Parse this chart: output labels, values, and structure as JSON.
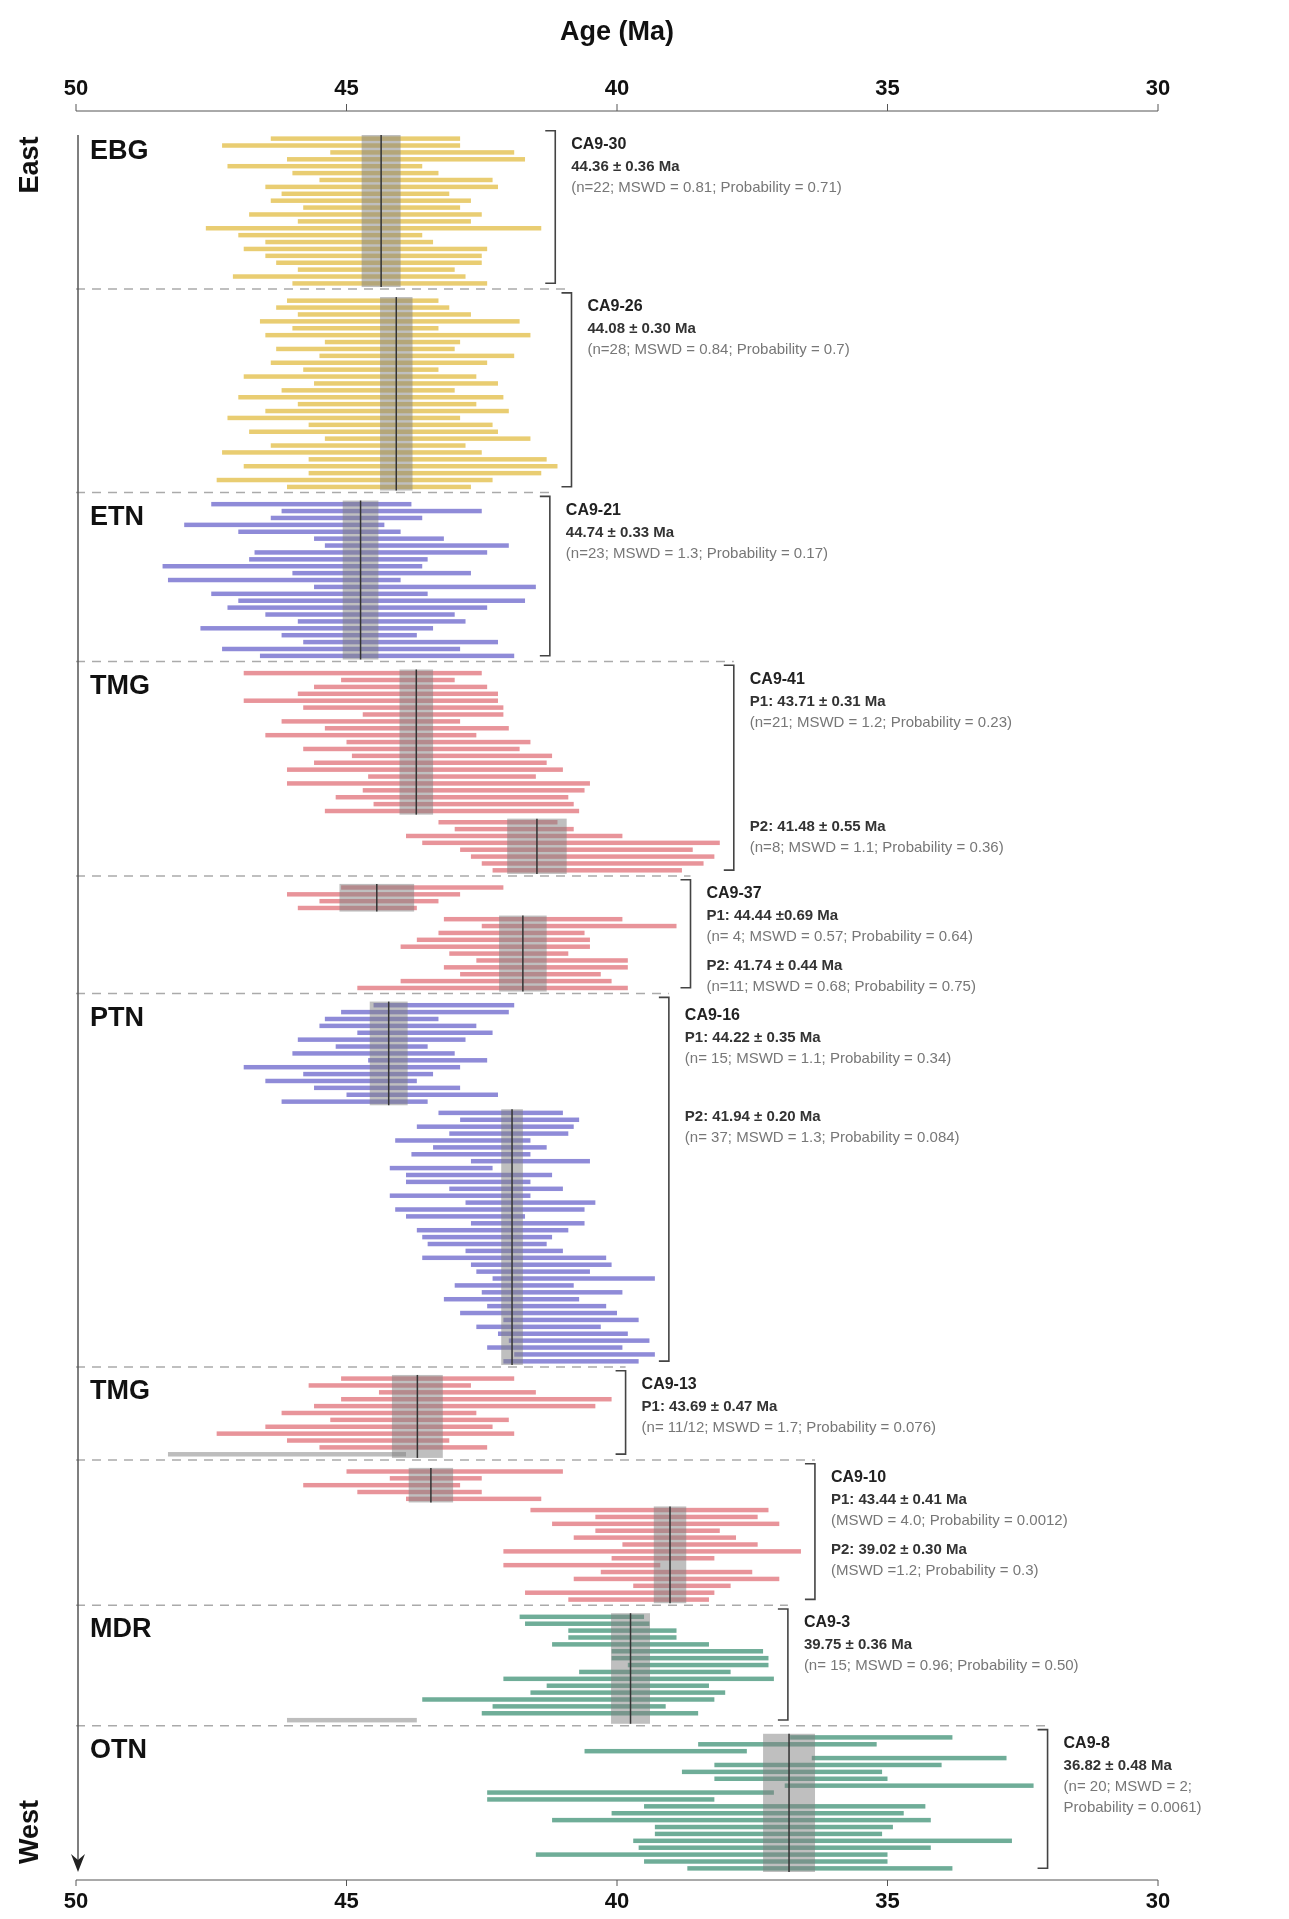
{
  "chart_data": [
    {
      "type": "bar",
      "orientation": "horizontal",
      "title": "CA9-30",
      "subtitle": "EBG",
      "ylabel": "East",
      "x2label": "Age (Ma)",
      "x2lim": [
        50,
        30
      ],
      "x2ticks": [
        50,
        45,
        40,
        35,
        30
      ],
      "xlim": [
        50,
        30
      ],
      "tick_labels": false,
      "categories": [
        null,
        null,
        null,
        null,
        null,
        null,
        null,
        null,
        null,
        null,
        null,
        null,
        null,
        null,
        null,
        null,
        null,
        null,
        null,
        null,
        null,
        null
      ],
      "base": [
        42.9,
        42.9,
        41.9,
        41.7,
        43.6,
        43.3,
        42.3,
        42.2,
        43.1,
        42.7,
        42.9,
        42.5,
        42.7,
        41.4,
        43.6,
        43.4,
        42.4,
        42.5,
        42.5,
        43.0,
        42.8,
        42.4
      ],
      "color": "#e9cd72",
      "values": [
        3.5,
        4.4,
        3.4,
        4.4,
        3.6,
        2.7,
        3.2,
        4.3,
        3.1,
        3.7,
        2.9,
        4.3,
        3.2,
        6.2,
        3.4,
        3.1,
        4.5,
        4.0,
        3.8,
        2.9,
        4.3,
        3.6
      ],
      "bands": [
        {
          "axis": "x",
          "from": 44.0,
          "to": 44.72,
          "color": "#7f7f7f"
        }
      ],
      "ref_lines": [
        {
          "axis": "x",
          "value": 44.36,
          "color": "#333333"
        }
      ],
      "annotations": [
        "44.36 ± 0.36 Ma",
        "(n=22; MSWD = 0.81; Probability = 0.71)"
      ]
    },
    {
      "type": "bar",
      "orientation": "horizontal",
      "title": "CA9-26",
      "xlim": [
        50,
        30
      ],
      "tick_labels": false,
      "categories": [
        null,
        null,
        null,
        null,
        null,
        null,
        null,
        null,
        null,
        null,
        null,
        null,
        null,
        null,
        null,
        null,
        null,
        null,
        null,
        null,
        null,
        null,
        null,
        null,
        null,
        null,
        null,
        null
      ],
      "base": [
        43.3,
        43.1,
        42.7,
        41.8,
        43.3,
        41.6,
        42.9,
        43.0,
        41.9,
        42.4,
        43.3,
        42.6,
        42.2,
        43.0,
        42.1,
        42.6,
        42.0,
        42.9,
        42.3,
        42.2,
        41.6,
        42.8,
        42.5,
        41.3,
        41.1,
        41.4,
        42.3,
        42.7
      ],
      "color": "#e9cd72",
      "values": [
        2.8,
        3.2,
        3.2,
        4.8,
        2.7,
        4.9,
        2.5,
        3.3,
        3.6,
        4.0,
        2.5,
        4.3,
        3.4,
        3.2,
        4.9,
        3.3,
        4.5,
        4.3,
        3.4,
        4.6,
        3.8,
        3.6,
        4.8,
        4.4,
        5.8,
        4.3,
        5.1,
        3.4
      ],
      "bands": [
        {
          "axis": "x",
          "from": 43.78,
          "to": 44.38,
          "color": "#7f7f7f"
        }
      ],
      "ref_lines": [
        {
          "axis": "x",
          "value": 44.08,
          "color": "#333333"
        }
      ],
      "annotations": [
        "44.08 ± 0.30 Ma",
        "(n=28; MSWD = 0.84; Probability = 0.7)"
      ]
    },
    {
      "type": "bar",
      "orientation": "horizontal",
      "title": "CA9-21",
      "subtitle": "ETN",
      "xlim": [
        50,
        30
      ],
      "tick_labels": false,
      "categories": [
        null,
        null,
        null,
        null,
        null,
        null,
        null,
        null,
        null,
        null,
        null,
        null,
        null,
        null,
        null,
        null,
        null,
        null,
        null,
        null,
        null,
        null,
        null
      ],
      "base": [
        43.8,
        42.5,
        43.6,
        44.3,
        44.0,
        43.2,
        42.0,
        42.4,
        43.5,
        43.6,
        42.7,
        44.0,
        41.5,
        43.5,
        41.7,
        42.4,
        43.0,
        42.8,
        43.4,
        43.7,
        42.2,
        42.9,
        41.9
      ],
      "color": "#8f8bd8",
      "values": [
        3.7,
        3.7,
        2.8,
        3.7,
        3.0,
        2.4,
        3.4,
        4.3,
        3.3,
        4.8,
        3.3,
        4.3,
        4.1,
        4.0,
        5.3,
        4.8,
        3.5,
        3.1,
        4.3,
        2.5,
        3.6,
        4.4,
        4.7
      ],
      "bands": [
        {
          "axis": "x",
          "from": 44.41,
          "to": 45.07,
          "color": "#7f7f7f"
        }
      ],
      "ref_lines": [
        {
          "axis": "x",
          "value": 44.74,
          "color": "#333333"
        }
      ],
      "annotations": [
        "44.74 ± 0.33 Ma",
        "(n=23; MSWD = 1.3; Probability = 0.17)"
      ]
    },
    {
      "type": "bar",
      "orientation": "horizontal",
      "title": "CA9-41",
      "subtitle": "TMG",
      "xlim": [
        50,
        30
      ],
      "tick_labels": false,
      "categories": [
        null,
        null,
        null,
        null,
        null,
        null,
        null,
        null,
        null,
        null,
        null,
        null,
        null,
        null,
        null,
        null,
        null,
        null,
        null,
        null,
        null
      ],
      "base": [
        42.5,
        43.0,
        42.4,
        42.2,
        42.2,
        42.1,
        42.1,
        42.9,
        42.0,
        42.6,
        41.6,
        41.8,
        41.2,
        41.3,
        41.0,
        41.5,
        40.5,
        40.6,
        40.9,
        40.8,
        40.7
      ],
      "color": "#e8949a",
      "values": [
        4.4,
        2.1,
        3.2,
        3.7,
        4.7,
        3.7,
        2.6,
        3.3,
        3.4,
        3.9,
        3.4,
        4.0,
        3.7,
        4.3,
        5.1,
        3.1,
        5.6,
        4.1,
        4.3,
        3.7,
        4.7
      ],
      "bands": [
        {
          "axis": "x",
          "from": 43.4,
          "to": 44.02,
          "color": "#7f7f7f"
        }
      ],
      "ref_lines": [
        {
          "axis": "x",
          "value": 43.71,
          "color": "#333333"
        }
      ],
      "annotations": [
        "P1: 43.71 ± 0.31 Ma",
        "(n=21; MSWD = 1.2; Probability = 0.23)"
      ]
    },
    {
      "type": "bar",
      "orientation": "horizontal",
      "xlim": [
        50,
        30
      ],
      "tick_labels": false,
      "categories": [
        null,
        null,
        null,
        null,
        null,
        null,
        null,
        null
      ],
      "base": [
        41.1,
        40.8,
        39.9,
        38.1,
        38.6,
        38.2,
        38.4,
        38.8
      ],
      "color": "#e8949a",
      "values": [
        2.2,
        2.2,
        4.0,
        5.5,
        4.3,
        4.5,
        4.1,
        3.5
      ],
      "bands": [
        {
          "axis": "x",
          "from": 40.93,
          "to": 42.03,
          "color": "#7f7f7f"
        }
      ],
      "ref_lines": [
        {
          "axis": "x",
          "value": 41.48,
          "color": "#333333"
        }
      ],
      "annotations": [
        "P2: 41.48 ± 0.55 Ma",
        "(n=8; MSWD = 1.1; Probability = 0.36)"
      ]
    },
    {
      "type": "bar",
      "orientation": "horizontal",
      "title": "CA9-37",
      "xlim": [
        50,
        30
      ],
      "tick_labels": false,
      "categories": [
        null,
        null,
        null,
        null
      ],
      "base": [
        42.1,
        42.9,
        43.3,
        43.7
      ],
      "color": "#e8949a",
      "values": [
        3.0,
        3.2,
        2.2,
        2.2
      ],
      "bands": [
        {
          "axis": "x",
          "from": 43.75,
          "to": 45.13,
          "color": "#7f7f7f"
        }
      ],
      "ref_lines": [
        {
          "axis": "x",
          "value": 44.44,
          "color": "#333333"
        }
      ],
      "annotations": [
        "P1: 44.44 ±0.69 Ma",
        "(n= 4; MSWD = 0.57; Probability = 0.64)"
      ]
    },
    {
      "type": "bar",
      "orientation": "horizontal",
      "xlim": [
        50,
        30
      ],
      "tick_labels": false,
      "categories": [
        null,
        null,
        null,
        null,
        null,
        null,
        null,
        null,
        null,
        null,
        null
      ],
      "base": [
        39.9,
        38.9,
        40.6,
        40.5,
        40.5,
        40.9,
        39.8,
        39.8,
        40.3,
        40.1,
        39.8
      ],
      "color": "#e8949a",
      "values": [
        3.3,
        3.6,
        2.7,
        3.2,
        3.5,
        2.2,
        2.8,
        3.4,
        2.6,
        3.9,
        5.0
      ],
      "bands": [
        {
          "axis": "x",
          "from": 41.3,
          "to": 42.18,
          "color": "#7f7f7f"
        }
      ],
      "ref_lines": [
        {
          "axis": "x",
          "value": 41.74,
          "color": "#333333"
        }
      ],
      "annotations": [
        "P2: 41.74 ± 0.44 Ma",
        "(n=11; MSWD = 0.68; Probability = 0.75)"
      ]
    },
    {
      "type": "bar",
      "orientation": "horizontal",
      "title": "CA9-16",
      "subtitle": "PTN",
      "xlim": [
        50,
        30
      ],
      "tick_labels": false,
      "categories": [
        null,
        null,
        null,
        null,
        null,
        null,
        null,
        null,
        null,
        null,
        null,
        null,
        null,
        null,
        null
      ],
      "base": [
        41.9,
        42.0,
        43.3,
        42.6,
        42.3,
        42.8,
        43.5,
        43.0,
        42.4,
        42.9,
        43.4,
        43.7,
        42.9,
        42.2,
        43.5
      ],
      "color": "#8f8bd8",
      "values": [
        2.6,
        3.1,
        2.1,
        2.9,
        2.5,
        3.1,
        1.7,
        3.0,
        2.2,
        4.0,
        2.4,
        2.8,
        2.7,
        2.8,
        2.7
      ],
      "bands": [
        {
          "axis": "x",
          "from": 43.87,
          "to": 44.57,
          "color": "#7f7f7f"
        }
      ],
      "ref_lines": [
        {
          "axis": "x",
          "value": 44.22,
          "color": "#333333"
        }
      ],
      "annotations": [
        "P1: 44.22 ± 0.35 Ma",
        "(n= 15; MSWD = 1.1; Probability = 0.34)"
      ]
    },
    {
      "type": "bar",
      "orientation": "horizontal",
      "xlim": [
        50,
        30
      ],
      "tick_labels": false,
      "categories": [
        null,
        null,
        null,
        null,
        null,
        null,
        null,
        null,
        null,
        null,
        null,
        null,
        null,
        null,
        null,
        null,
        null,
        null,
        null,
        null,
        null,
        null,
        null,
        null,
        null,
        null,
        null,
        null,
        null,
        null,
        null,
        null,
        null,
        null,
        null,
        null,
        null
      ],
      "base": [
        41.0,
        40.7,
        40.8,
        40.9,
        41.6,
        41.3,
        41.6,
        40.5,
        42.3,
        41.2,
        41.6,
        41.0,
        41.6,
        40.4,
        40.6,
        41.7,
        40.6,
        40.9,
        41.2,
        41.3,
        41.0,
        40.2,
        40.1,
        40.5,
        39.3,
        40.8,
        39.9,
        40.7,
        40.2,
        40.0,
        39.6,
        40.3,
        39.8,
        39.4,
        39.9,
        39.3,
        39.6
      ],
      "color": "#8f8bd8",
      "values": [
        2.3,
        2.2,
        2.9,
        2.2,
        2.5,
        2.1,
        2.2,
        2.2,
        1.9,
        2.7,
        2.3,
        2.1,
        2.6,
        2.4,
        3.5,
        2.2,
        2.1,
        2.8,
        2.4,
        2.2,
        1.8,
        3.4,
        2.6,
        2.1,
        3.0,
        2.2,
        2.6,
        2.5,
        2.2,
        2.9,
        2.5,
        2.3,
        2.4,
        2.6,
        2.5,
        2.6,
        2.5
      ],
      "bands": [
        {
          "axis": "x",
          "from": 41.74,
          "to": 42.14,
          "color": "#7f7f7f"
        }
      ],
      "ref_lines": [
        {
          "axis": "x",
          "value": 41.94,
          "color": "#333333"
        }
      ],
      "annotations": [
        "P2: 41.94 ± 0.20 Ma",
        "(n= 37; MSWD = 1.3; Probability = 0.084)"
      ]
    },
    {
      "type": "bar",
      "orientation": "horizontal",
      "title": "CA9-13",
      "subtitle": "TMG",
      "xlim": [
        50,
        30
      ],
      "tick_labels": false,
      "categories": [
        null,
        null,
        null,
        null,
        null,
        null,
        null,
        null,
        null,
        null,
        null,
        null
      ],
      "base": [
        41.9,
        42.7,
        41.5,
        40.1,
        40.4,
        42.6,
        42.0,
        42.3,
        41.9,
        43.1,
        42.4,
        43.9
      ],
      "values": [
        3.2,
        3.0,
        2.9,
        5.0,
        5.2,
        3.6,
        3.3,
        4.2,
        5.5,
        3.0,
        3.1,
        4.4
      ],
      "colors": [
        "#e8949a",
        "#e8949a",
        "#e8949a",
        "#e8949a",
        "#e8949a",
        "#e8949a",
        "#e8949a",
        "#e8949a",
        "#e8949a",
        "#e8949a",
        "#e8949a",
        "#bdbdbd"
      ],
      "bands": [
        {
          "axis": "x",
          "from": 43.22,
          "to": 44.16,
          "color": "#7f7f7f"
        }
      ],
      "ref_lines": [
        {
          "axis": "x",
          "value": 43.69,
          "color": "#333333"
        }
      ],
      "annotations": [
        "P1: 43.69 ± 0.47 Ma",
        "(n= 11/12; MSWD = 1.7; Probability = 0.076)"
      ]
    },
    {
      "type": "bar",
      "orientation": "horizontal",
      "title": "CA9-10",
      "xlim": [
        50,
        30
      ],
      "tick_labels": false,
      "categories": [
        null,
        null,
        null,
        null,
        null
      ],
      "base": [
        41.0,
        42.5,
        42.9,
        42.5,
        41.4
      ],
      "color": "#e8949a",
      "values": [
        4.0,
        1.7,
        2.9,
        2.3,
        2.5
      ],
      "bands": [
        {
          "axis": "x",
          "from": 43.03,
          "to": 43.85,
          "color": "#7f7f7f"
        }
      ],
      "ref_lines": [
        {
          "axis": "x",
          "value": 43.44,
          "color": "#333333"
        }
      ],
      "annotations": [
        "P1: 43.44 ± 0.41 Ma",
        "(MSWD = 4.0; Probability = 0.0012)"
      ]
    },
    {
      "type": "bar",
      "orientation": "horizontal",
      "xlim": [
        50,
        30
      ],
      "tick_labels": false,
      "categories": [
        null,
        null,
        null,
        null,
        null,
        null,
        null,
        null,
        null,
        null,
        null,
        null,
        null,
        null
      ],
      "base": [
        37.2,
        37.4,
        37.0,
        38.1,
        37.8,
        37.4,
        36.6,
        38.2,
        39.2,
        37.5,
        37.0,
        37.9,
        38.2,
        38.3
      ],
      "color": "#e8949a",
      "values": [
        4.4,
        3.0,
        4.2,
        2.3,
        3.0,
        2.5,
        5.5,
        1.9,
        2.9,
        2.8,
        3.8,
        1.8,
        3.5,
        2.6
      ],
      "bands": [
        {
          "axis": "x",
          "from": 38.72,
          "to": 39.32,
          "color": "#7f7f7f"
        }
      ],
      "ref_lines": [
        {
          "axis": "x",
          "value": 39.02,
          "color": "#333333"
        }
      ],
      "annotations": [
        "P2: 39.02 ± 0.30 Ma",
        "(MSWD =1.2; Probability = 0.3)"
      ]
    },
    {
      "type": "bar",
      "orientation": "horizontal",
      "title": "CA9-3",
      "subtitle": "MDR",
      "xlim": [
        50,
        30
      ],
      "tick_labels": false,
      "categories": [
        null,
        null,
        null,
        null,
        null,
        null,
        null,
        null,
        null,
        null,
        null,
        null,
        null,
        null,
        null,
        null
      ],
      "base": [
        39.5,
        39.4,
        38.9,
        38.9,
        38.3,
        37.3,
        37.2,
        37.2,
        37.9,
        37.1,
        38.3,
        38.0,
        38.2,
        39.1,
        38.5,
        43.7
      ],
      "values": [
        2.3,
        2.3,
        2.0,
        2.0,
        2.9,
        2.8,
        2.9,
        2.6,
        2.8,
        5.0,
        3.0,
        3.6,
        5.4,
        3.2,
        4.0,
        2.4
      ],
      "colors": [
        "#6fad98",
        "#6fad98",
        "#6fad98",
        "#6fad98",
        "#6fad98",
        "#6fad98",
        "#6fad98",
        "#6fad98",
        "#6fad98",
        "#6fad98",
        "#6fad98",
        "#6fad98",
        "#6fad98",
        "#6fad98",
        "#6fad98",
        "#bdbdbd"
      ],
      "bands": [
        {
          "axis": "x",
          "from": 39.39,
          "to": 40.11,
          "color": "#7f7f7f"
        }
      ],
      "ref_lines": [
        {
          "axis": "x",
          "value": 39.75,
          "color": "#333333"
        }
      ],
      "annotations": [
        "39.75 ± 0.36 Ma",
        "(n= 15; MSWD = 0.96; Probability = 0.50)"
      ]
    },
    {
      "type": "bar",
      "orientation": "horizontal",
      "title": "CA9-8",
      "subtitle": "OTN",
      "ylabel": "West",
      "xlim": [
        50,
        30
      ],
      "xticks": [
        50,
        45,
        40,
        35,
        30
      ],
      "tick_labels": "x",
      "categories": [
        null,
        null,
        null,
        null,
        null,
        null,
        null,
        null,
        null,
        null,
        null,
        null,
        null,
        null,
        null,
        null,
        null,
        null,
        null,
        null
      ],
      "base": [
        33.8,
        35.2,
        37.6,
        32.8,
        34.0,
        35.1,
        35.0,
        32.3,
        37.1,
        38.2,
        34.3,
        34.7,
        34.2,
        34.9,
        35.1,
        32.7,
        34.2,
        35.0,
        35.0,
        33.8
      ],
      "color": "#6fad98",
      "values": [
        3.0,
        3.3,
        3.0,
        3.6,
        4.2,
        3.7,
        3.2,
        4.6,
        5.3,
        4.2,
        5.2,
        5.4,
        7.0,
        4.4,
        4.2,
        7.0,
        5.4,
        6.5,
        4.5,
        4.9
      ],
      "bands": [
        {
          "axis": "x",
          "from": 36.34,
          "to": 37.3,
          "color": "#7f7f7f"
        }
      ],
      "ref_lines": [
        {
          "axis": "x",
          "value": 36.82,
          "color": "#333333"
        }
      ],
      "annotations": [
        "36.82 ± 0.48 Ma",
        "(n= 20; MSWD = 2; Probability = 0.0061)"
      ]
    }
  ]
}
